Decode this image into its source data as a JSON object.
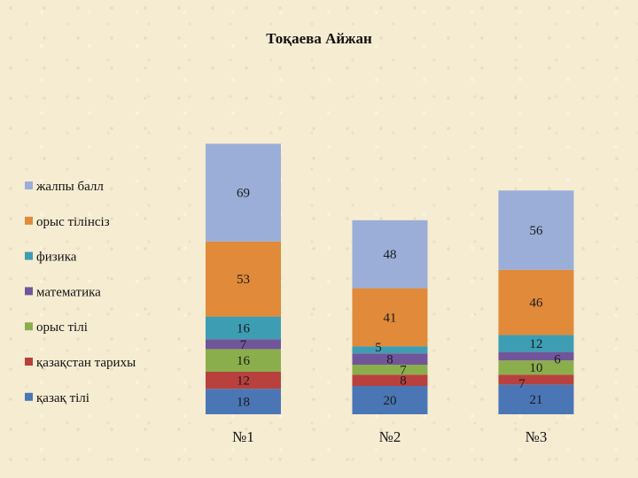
{
  "chart_data": {
    "type": "stacked-bar",
    "title": "Тоқаева Айжан",
    "categories": [
      "№1",
      "№2",
      "№3"
    ],
    "xlabel": "",
    "ylabel": "",
    "grid": false,
    "legend_position": "left",
    "series": [
      {
        "name": "қазақ тілі",
        "color": "#4a76b5",
        "values": [
          18,
          20,
          21
        ]
      },
      {
        "name": "қазақстан тарихы",
        "color": "#b8413d",
        "values": [
          12,
          8,
          7
        ]
      },
      {
        "name": "орыс тілі",
        "color": "#8bae4c",
        "values": [
          16,
          7,
          10
        ]
      },
      {
        "name": "математика",
        "color": "#70559a",
        "values": [
          7,
          8,
          6
        ]
      },
      {
        "name": "физика",
        "color": "#3d9db3",
        "values": [
          16,
          5,
          12
        ]
      },
      {
        "name": "орыс тілінсіз",
        "color": "#e08a3a",
        "values": [
          53,
          41,
          46
        ]
      },
      {
        "name": "жалпы балл",
        "color": "#9aaed8",
        "values": [
          69,
          48,
          56
        ]
      }
    ]
  }
}
